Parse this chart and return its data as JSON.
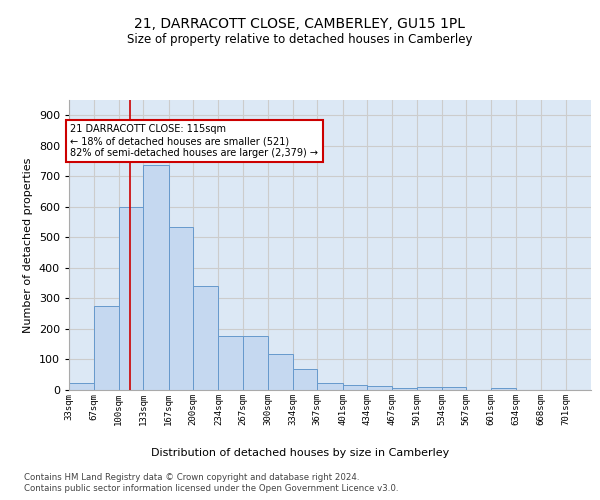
{
  "title": "21, DARRACOTT CLOSE, CAMBERLEY, GU15 1PL",
  "subtitle": "Size of property relative to detached houses in Camberley",
  "xlabel": "Distribution of detached houses by size in Camberley",
  "ylabel": "Number of detached properties",
  "bin_labels": [
    "33sqm",
    "67sqm",
    "100sqm",
    "133sqm",
    "167sqm",
    "200sqm",
    "234sqm",
    "267sqm",
    "300sqm",
    "334sqm",
    "367sqm",
    "401sqm",
    "434sqm",
    "467sqm",
    "501sqm",
    "534sqm",
    "567sqm",
    "601sqm",
    "634sqm",
    "668sqm",
    "701sqm"
  ],
  "bar_values": [
    22,
    275,
    598,
    738,
    535,
    340,
    178,
    178,
    118,
    68,
    22,
    15,
    12,
    8,
    10,
    10,
    0,
    8,
    0,
    0,
    0
  ],
  "bar_color": "#c5d8f0",
  "bar_edge_color": "#6699cc",
  "red_line_color": "#cc0000",
  "annotation_line1": "21 DARRACOTT CLOSE: 115sqm",
  "annotation_line2": "← 18% of detached houses are smaller (521)",
  "annotation_line3": "82% of semi-detached houses are larger (2,379) →",
  "ylim": [
    0,
    950
  ],
  "yticks": [
    0,
    100,
    200,
    300,
    400,
    500,
    600,
    700,
    800,
    900
  ],
  "grid_color": "#cccccc",
  "bg_color": "#dce8f5",
  "footer1": "Contains HM Land Registry data © Crown copyright and database right 2024.",
  "footer2": "Contains public sector information licensed under the Open Government Licence v3.0.",
  "bin_edges": [
    33,
    67,
    100,
    133,
    167,
    200,
    234,
    267,
    300,
    334,
    367,
    401,
    434,
    467,
    501,
    534,
    567,
    601,
    634,
    668,
    701,
    735
  ]
}
